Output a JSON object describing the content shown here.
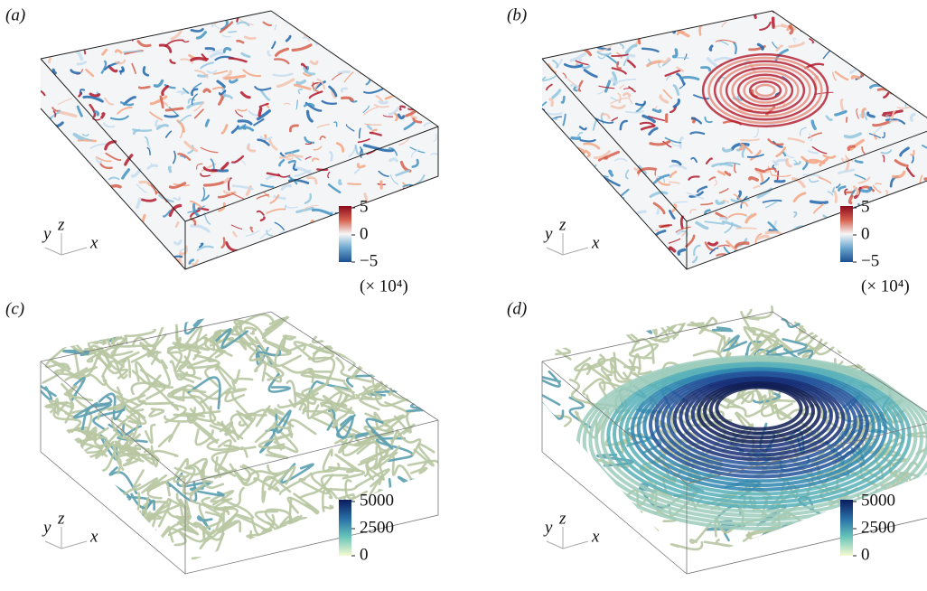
{
  "panels": [
    {
      "label": "(a)",
      "axes": {
        "y": "y",
        "z": "z",
        "x": "x"
      },
      "colorbar": {
        "ticks": [
          "5",
          "0",
          "−5"
        ],
        "multiplier": "(× 10⁴)"
      }
    },
    {
      "label": "(b)",
      "axes": {
        "y": "y",
        "z": "z",
        "x": "x"
      },
      "colorbar": {
        "ticks": [
          "5",
          "0",
          "−5"
        ],
        "multiplier": "(× 10⁴)"
      }
    },
    {
      "label": "(c)",
      "axes": {
        "y": "y",
        "z": "z",
        "x": "x"
      },
      "colorbar": {
        "ticks": [
          "5000",
          "2500",
          "0"
        ]
      }
    },
    {
      "label": "(d)",
      "axes": {
        "y": "y",
        "z": "z",
        "x": "x"
      },
      "colorbar": {
        "ticks": [
          "5000",
          "2500",
          "0"
        ]
      }
    }
  ]
}
